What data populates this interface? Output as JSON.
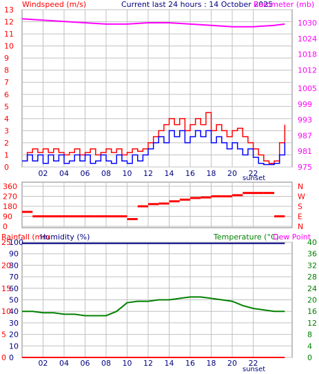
{
  "header": {
    "windspeed_label": "Windspeed (m/s)",
    "title": "Current last 24 hours : 14 October 2025",
    "barometer_label": "Barometer (mb)"
  },
  "labels": {
    "sunset": "sunset",
    "rainfall": "Rainfall (mm",
    "humidity": "Humidity (%)",
    "temperature": "Temperature (°C)",
    "dew_point": "Dew Point"
  },
  "colors": {
    "wind_gust": "#ff0000",
    "wind_avg": "#0000ff",
    "barometer": "#ff00ff",
    "direction": "#ff0000",
    "temperature": "#008000",
    "humidity": "#000080",
    "rainfall": "#ff0000",
    "grid": "#c0c0c0",
    "grid_dark": "#808080"
  },
  "chart_data": [
    {
      "type": "line",
      "name": "wind_barometer",
      "x_ticks": [
        "02",
        "04",
        "06",
        "08",
        "10",
        "12",
        "14",
        "16",
        "18",
        "20",
        "22"
      ],
      "x_range_hours": [
        0,
        25.7
      ],
      "y_left": {
        "label": "Windspeed (m/s)",
        "ticks": [
          0,
          1,
          2,
          3,
          4,
          5,
          6,
          7,
          8,
          9,
          10,
          11,
          12,
          13
        ],
        "range": [
          0,
          13
        ]
      },
      "y_right": {
        "label": "Barometer (mb)",
        "ticks": [
          975,
          981,
          987,
          993,
          999,
          1005,
          1012,
          1018,
          1024,
          1030
        ],
        "range": [
          975,
          1035
        ]
      },
      "series": [
        {
          "name": "gust",
          "axis": "left",
          "x": [
            0,
            0.5,
            1,
            1.5,
            2,
            2.5,
            3,
            3.5,
            4,
            4.5,
            5,
            5.5,
            6,
            6.5,
            7,
            7.5,
            8,
            8.5,
            9,
            9.5,
            10,
            10.5,
            11,
            11.5,
            12,
            12.5,
            13,
            13.5,
            14,
            14.5,
            15,
            15.5,
            16,
            16.5,
            17,
            17.5,
            18,
            18.5,
            19,
            19.5,
            20,
            20.5,
            21,
            21.5,
            22,
            22.5,
            23,
            23.5,
            24,
            24.5,
            25
          ],
          "values": [
            0.5,
            1.2,
            1.5,
            1.2,
            1.5,
            1.2,
            1.5,
            1.2,
            1,
            1.2,
            1.5,
            1,
            1.2,
            1.5,
            1,
            1.2,
            1.5,
            1.2,
            1.5,
            1,
            1.2,
            1.5,
            1.3,
            1.5,
            2,
            2.5,
            3,
            3.5,
            4,
            3.5,
            4,
            3,
            3.5,
            4,
            3.5,
            4.5,
            3,
            3.5,
            3,
            2.5,
            3,
            3.2,
            2.5,
            2,
            1.5,
            1,
            0.5,
            0.3,
            0.5,
            2,
            3.5
          ]
        },
        {
          "name": "average",
          "axis": "left",
          "x": [
            0,
            0.5,
            1,
            1.5,
            2,
            2.5,
            3,
            3.5,
            4,
            4.5,
            5,
            5.5,
            6,
            6.5,
            7,
            7.5,
            8,
            8.5,
            9,
            9.5,
            10,
            10.5,
            11,
            11.5,
            12,
            12.5,
            13,
            13.5,
            14,
            14.5,
            15,
            15.5,
            16,
            16.5,
            17,
            17.5,
            18,
            18.5,
            19,
            19.5,
            20,
            20.5,
            21,
            21.5,
            22,
            22.5,
            23,
            23.5,
            24,
            24.5,
            25
          ],
          "values": [
            0.5,
            1,
            0.5,
            1,
            0.3,
            1,
            0.5,
            1,
            0.3,
            0.5,
            1,
            0.5,
            1,
            0.3,
            0.5,
            1,
            0.5,
            0.3,
            1,
            0.5,
            0.3,
            1,
            0.5,
            1,
            1.5,
            2,
            2.5,
            2,
            3,
            2.5,
            3,
            2,
            2.5,
            3,
            2.5,
            3,
            2,
            2.5,
            2,
            1.5,
            2,
            1.5,
            1,
            1.5,
            0.8,
            0.3,
            0.2,
            0.2,
            0.3,
            1,
            2
          ]
        },
        {
          "name": "barometer",
          "axis": "right",
          "x": [
            0,
            2,
            4,
            6,
            8,
            10,
            12,
            14,
            16,
            18,
            20,
            22,
            24,
            25
          ],
          "values": [
            1031.5,
            1031,
            1030.5,
            1030,
            1029.5,
            1029.5,
            1030,
            1030,
            1029.5,
            1029,
            1028.5,
            1028.5,
            1029,
            1029.5
          ]
        }
      ]
    },
    {
      "type": "scatter",
      "name": "wind_direction",
      "y_ticks_left": [
        "360",
        "270",
        "180",
        "90",
        "0"
      ],
      "y_ticks_right": [
        "N",
        "W",
        "S",
        "E",
        "N"
      ],
      "y_range": [
        0,
        360
      ],
      "x": [
        0,
        1,
        2,
        3,
        4,
        5,
        6,
        7,
        8,
        9,
        10,
        11,
        12,
        13,
        14,
        15,
        16,
        17,
        18,
        19,
        20,
        21,
        22,
        23,
        24,
        25
      ],
      "values": [
        130,
        90,
        90,
        90,
        90,
        90,
        90,
        90,
        90,
        90,
        65,
        180,
        200,
        205,
        225,
        240,
        255,
        260,
        270,
        270,
        280,
        300,
        300,
        300,
        90,
        90
      ]
    },
    {
      "type": "line",
      "name": "temp_humidity",
      "y_left_humidity": {
        "label": "Humidity (%)",
        "ticks": [
          0,
          10,
          20,
          30,
          40,
          50,
          60,
          70,
          80,
          90,
          100
        ],
        "range": [
          0,
          100
        ]
      },
      "y_left_rain": {
        "label": "Rainfall (mm",
        "ticks": [
          0,
          5,
          10,
          15,
          20,
          25
        ],
        "range": [
          0,
          25
        ]
      },
      "y_right": {
        "label": "Temperature (°C)",
        "ticks": [
          0,
          4,
          8,
          12,
          16,
          20,
          24,
          28,
          32,
          36,
          40
        ],
        "range": [
          0,
          40
        ]
      },
      "series": [
        {
          "name": "temperature",
          "axis": "right",
          "x": [
            0,
            1,
            2,
            3,
            4,
            5,
            6,
            7,
            8,
            9,
            10,
            11,
            12,
            13,
            14,
            15,
            16,
            17,
            18,
            19,
            20,
            21,
            22,
            23,
            24,
            25
          ],
          "values": [
            16,
            16,
            15.5,
            15.5,
            15,
            15,
            14.5,
            14.5,
            14.5,
            16,
            19,
            19.5,
            19.5,
            20,
            20,
            20.5,
            21,
            21,
            20.5,
            20,
            19.5,
            18,
            17,
            16.5,
            16,
            16
          ]
        },
        {
          "name": "humidity",
          "axis": "left",
          "x": [
            0,
            25
          ],
          "values": [
            99,
            99
          ]
        },
        {
          "name": "rainfall",
          "axis": "left_rain",
          "x": [
            0,
            25
          ],
          "values": [
            0,
            0
          ]
        }
      ]
    }
  ]
}
